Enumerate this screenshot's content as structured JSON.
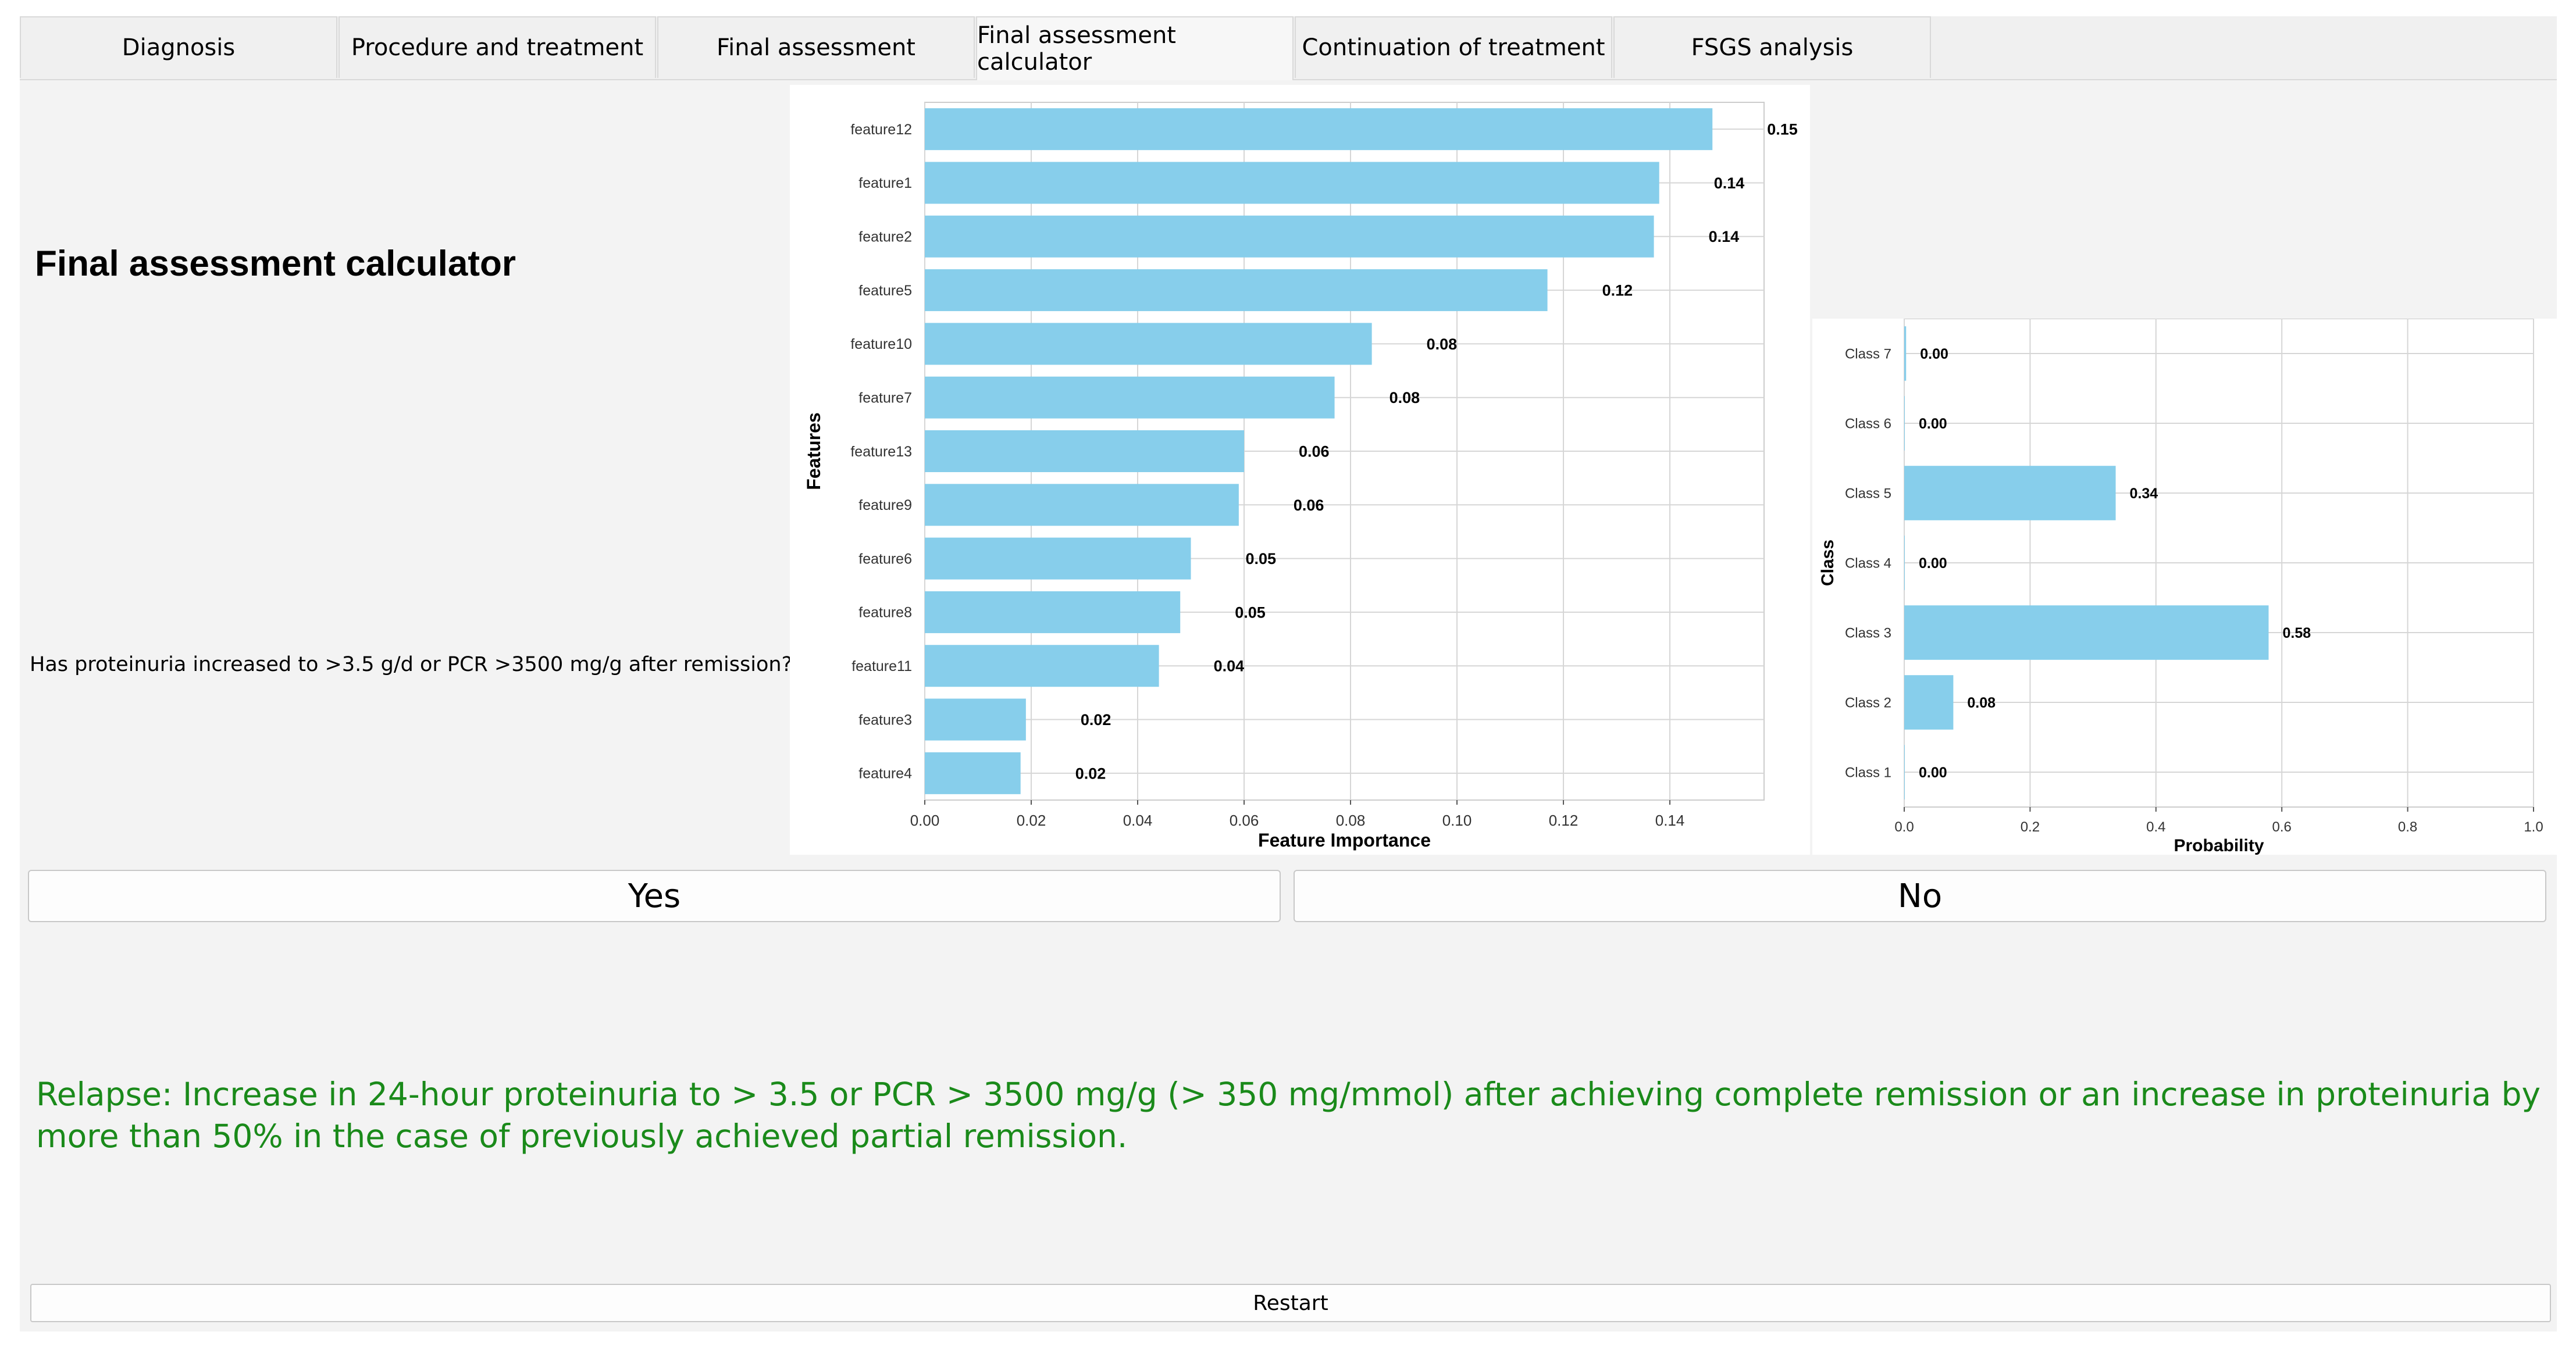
{
  "tabs": [
    {
      "label": "Diagnosis"
    },
    {
      "label": "Procedure and treatment"
    },
    {
      "label": "Final assessment"
    },
    {
      "label": "Final assessment calculator"
    },
    {
      "label": "Continuation of treatment"
    },
    {
      "label": "FSGS analysis"
    }
  ],
  "active_tab": "Final assessment calculator",
  "page_title": "Final assessment calculator",
  "question": "Has proteinuria increased to >3.5 g/d or PCR >3500 mg/g after remission?",
  "buttons": {
    "yes": "Yes",
    "no": "No",
    "restart": "Restart"
  },
  "result_text": "Relapse: Increase in 24-hour proteinuria to > 3.5 or PCR > 3500 mg/g (> 350 mg/mmol) after achieving complete remission or an increase in proteinuria by more than 50% in the case of previously achieved partial remission.",
  "colors": {
    "bar": "#87ceeb",
    "result_text": "#1a8a1a"
  },
  "chart_data": [
    {
      "type": "bar",
      "orientation": "horizontal",
      "title": "",
      "xlabel": "Feature Importance",
      "ylabel": "Features",
      "xlim": [
        0,
        0.1577
      ],
      "xticks": [
        0.0,
        0.02,
        0.04,
        0.06,
        0.08,
        0.1,
        0.12,
        0.14
      ],
      "xtick_labels": [
        "0.00",
        "0.02",
        "0.04",
        "0.06",
        "0.08",
        "0.10",
        "0.12",
        "0.14"
      ],
      "grid": true,
      "categories": [
        "feature12",
        "feature1",
        "feature2",
        "feature5",
        "feature10",
        "feature7",
        "feature13",
        "feature9",
        "feature6",
        "feature8",
        "feature11",
        "feature3",
        "feature4"
      ],
      "values": [
        0.148,
        0.138,
        0.137,
        0.117,
        0.084,
        0.077,
        0.06,
        0.059,
        0.05,
        0.048,
        0.044,
        0.019,
        0.018
      ],
      "labels": [
        "0.15",
        "0.14",
        "0.14",
        "0.12",
        "0.08",
        "0.08",
        "0.06",
        "0.06",
        "0.05",
        "0.05",
        "0.04",
        "0.02",
        "0.02"
      ]
    },
    {
      "type": "bar",
      "orientation": "horizontal",
      "title": "",
      "xlabel": "Probability",
      "ylabel": "Class",
      "xlim": [
        0,
        1.0
      ],
      "xticks": [
        0.0,
        0.2,
        0.4,
        0.6,
        0.8,
        1.0
      ],
      "xtick_labels": [
        "0.0",
        "0.2",
        "0.4",
        "0.6",
        "0.8",
        "1.0"
      ],
      "grid": true,
      "categories": [
        "Class 7",
        "Class 6",
        "Class 5",
        "Class 4",
        "Class 3",
        "Class 2",
        "Class 1"
      ],
      "values": [
        0.003,
        0.0,
        0.336,
        0.0,
        0.579,
        0.078,
        0.0
      ],
      "labels": [
        "0.00",
        "0.00",
        "0.34",
        "0.00",
        "0.58",
        "0.08",
        "0.00"
      ]
    }
  ]
}
